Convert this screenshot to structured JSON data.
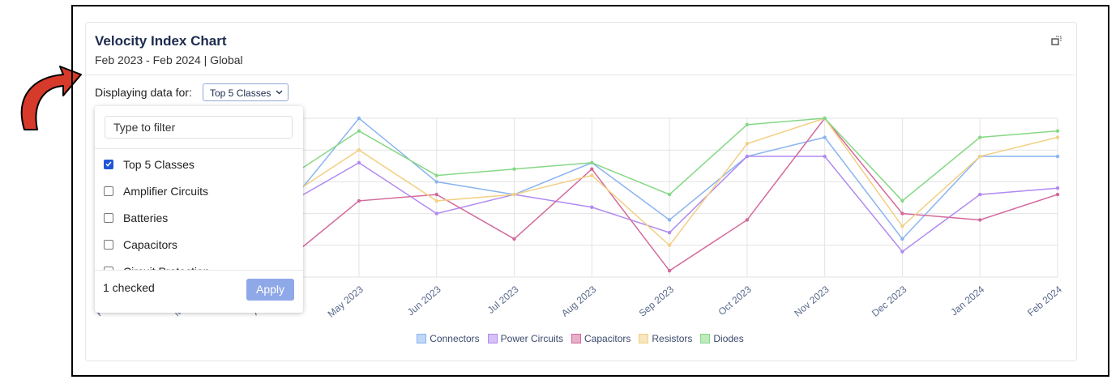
{
  "header": {
    "title": "Velocity Index Chart",
    "subtitle": "Feb 2023 - Feb 2024 | Global"
  },
  "filter": {
    "label": "Displaying data for:",
    "selected": "Top 5 Classes"
  },
  "dropdown": {
    "placeholder": "Type to filter",
    "options": [
      {
        "label": "Top 5 Classes",
        "checked": true
      },
      {
        "label": "Amplifier Circuits",
        "checked": false
      },
      {
        "label": "Batteries",
        "checked": false
      },
      {
        "label": "Capacitors",
        "checked": false
      },
      {
        "label": "Circuit Protection",
        "checked": false
      }
    ],
    "status": "1 checked",
    "button": "Apply"
  },
  "chart_data": {
    "type": "line",
    "categories": [
      "Feb 2023",
      "Mar 2023",
      "Apr 2023",
      "May 2023",
      "Jun 2023",
      "Jul 2023",
      "Aug 2023",
      "Sep 2023",
      "Oct 2023",
      "Nov 2023",
      "Dec 2023",
      "Jan 2024",
      "Feb 2024"
    ],
    "series": [
      {
        "name": "Connectors",
        "color": "#8ab4f0",
        "values": [
          null,
          null,
          2.0,
          5.0,
          3.0,
          2.6,
          3.6,
          1.8,
          3.8,
          4.4,
          1.2,
          3.8,
          3.8
        ]
      },
      {
        "name": "Power Circuits",
        "color": "#b08af0",
        "values": [
          null,
          null,
          2.2,
          3.6,
          2.0,
          2.6,
          2.2,
          1.4,
          3.8,
          3.8,
          0.8,
          2.6,
          2.8
        ]
      },
      {
        "name": "Capacitors",
        "color": "#d4699c",
        "values": [
          null,
          null,
          0.4,
          2.4,
          2.6,
          1.2,
          3.4,
          0.2,
          1.8,
          5.0,
          2.0,
          1.8,
          2.6
        ]
      },
      {
        "name": "Resistors",
        "color": "#f2d084",
        "values": [
          null,
          null,
          2.4,
          4.0,
          2.4,
          2.6,
          3.2,
          1.0,
          4.2,
          5.0,
          1.6,
          3.8,
          4.4
        ]
      },
      {
        "name": "Diodes",
        "color": "#86d886",
        "values": [
          null,
          null,
          3.0,
          4.6,
          3.2,
          3.4,
          3.6,
          2.6,
          4.8,
          5.0,
          2.4,
          4.4,
          4.6
        ]
      }
    ],
    "ylim": [
      0,
      5
    ],
    "yticks": [
      0,
      1,
      2,
      3,
      4,
      5
    ],
    "grid": true
  }
}
